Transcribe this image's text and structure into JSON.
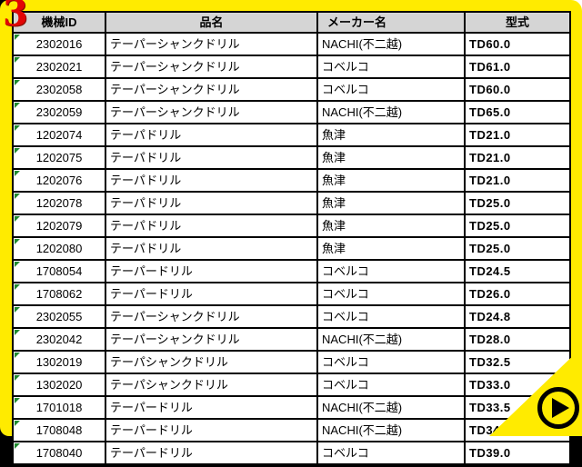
{
  "page": {
    "slide_number": "3",
    "colors": {
      "frame_yellow": "#ffeb00",
      "background": "#000000",
      "header_gray": "#d5d5d5",
      "slide_number_red": "#e30505",
      "marker_green": "#1f8a2e"
    }
  },
  "icons": {
    "next": "play-icon",
    "cell_flag": "number-as-text-marker-icon"
  },
  "table": {
    "headers": [
      "機械ID",
      "品名",
      "メーカー名",
      "型式"
    ],
    "rows": [
      {
        "id": "2302016",
        "name": "テーパーシャンクドリル",
        "maker": "NACHI(不二越)",
        "model": "TD60.0"
      },
      {
        "id": "2302021",
        "name": "テーパーシャンクドリル",
        "maker": "コベルコ",
        "model": "TD61.0"
      },
      {
        "id": "2302058",
        "name": "テーパーシャンクドリル",
        "maker": "コベルコ",
        "model": "TD60.0"
      },
      {
        "id": "2302059",
        "name": "テーパーシャンクドリル",
        "maker": "NACHI(不二越)",
        "model": "TD65.0"
      },
      {
        "id": "1202074",
        "name": "テーパドリル",
        "maker": "魚津",
        "model": "TD21.0"
      },
      {
        "id": "1202075",
        "name": "テーパドリル",
        "maker": "魚津",
        "model": "TD21.0"
      },
      {
        "id": "1202076",
        "name": "テーパドリル",
        "maker": "魚津",
        "model": "TD21.0"
      },
      {
        "id": "1202078",
        "name": "テーパドリル",
        "maker": "魚津",
        "model": "TD25.0"
      },
      {
        "id": "1202079",
        "name": "テーパドリル",
        "maker": "魚津",
        "model": "TD25.0"
      },
      {
        "id": "1202080",
        "name": "テーパドリル",
        "maker": "魚津",
        "model": "TD25.0"
      },
      {
        "id": "1708054",
        "name": "テーパードリル",
        "maker": "コベルコ",
        "model": "TD24.5"
      },
      {
        "id": "1708062",
        "name": "テーパードリル",
        "maker": "コベルコ",
        "model": "TD26.0"
      },
      {
        "id": "2302055",
        "name": "テーパーシャンクドリル",
        "maker": "コベルコ",
        "model": "TD24.8"
      },
      {
        "id": "2302042",
        "name": "テーパーシャンクドリル",
        "maker": "NACHI(不二越)",
        "model": "TD28.0"
      },
      {
        "id": "1302019",
        "name": "テーパシャンクドリル",
        "maker": "コベルコ",
        "model": "TD32.5"
      },
      {
        "id": "1302020",
        "name": "テーパシャンクドリル",
        "maker": "コベルコ",
        "model": "TD33.0"
      },
      {
        "id": "1701018",
        "name": "テーパードリル",
        "maker": "NACHI(不二越)",
        "model": "TD33.5"
      },
      {
        "id": "1708048",
        "name": "テーパードリル",
        "maker": "NACHI(不二越)",
        "model": "TD34.5"
      },
      {
        "id": "1708040",
        "name": "テーパードリル",
        "maker": "コベルコ",
        "model": "TD39.0"
      }
    ]
  }
}
